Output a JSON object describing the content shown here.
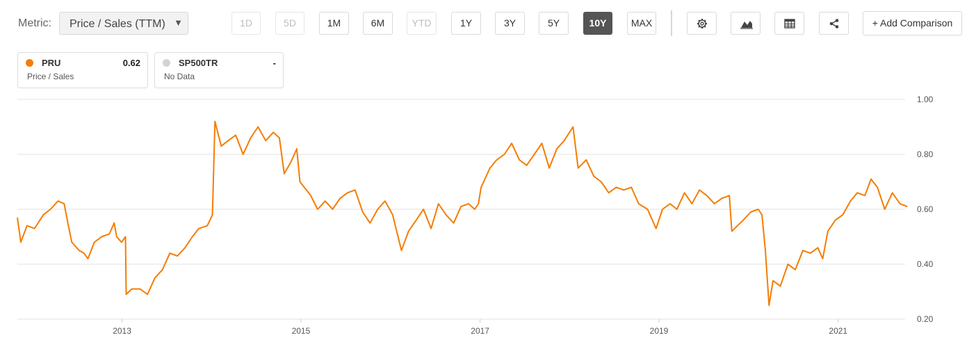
{
  "toolbar": {
    "metric_label": "Metric:",
    "metric_value": "Price / Sales (TTM)",
    "ranges": [
      {
        "label": "1D",
        "state": "disabled"
      },
      {
        "label": "5D",
        "state": "disabled"
      },
      {
        "label": "1M",
        "state": "enabled"
      },
      {
        "label": "6M",
        "state": "enabled"
      },
      {
        "label": "YTD",
        "state": "disabled"
      },
      {
        "label": "1Y",
        "state": "enabled"
      },
      {
        "label": "3Y",
        "state": "enabled"
      },
      {
        "label": "5Y",
        "state": "enabled"
      },
      {
        "label": "10Y",
        "state": "active"
      },
      {
        "label": "MAX",
        "state": "enabled"
      }
    ],
    "icons": [
      "gear-icon",
      "area-chart-icon",
      "table-icon",
      "share-icon"
    ],
    "add_comparison_label": "+ Add Comparison"
  },
  "legend": [
    {
      "symbol": "PRU",
      "value": "0.62",
      "subtitle": "Price / Sales",
      "color": "#f57c00"
    },
    {
      "symbol": "SP500TR",
      "value": "-",
      "subtitle": "No Data",
      "color": "#d3d3d3"
    }
  ],
  "chart_data": {
    "type": "line",
    "x_ticks": [
      "2013",
      "2015",
      "2017",
      "2019",
      "2021"
    ],
    "y_ticks": [
      "1.00",
      "0.80",
      "0.60",
      "0.40",
      "0.20"
    ],
    "ylim": [
      0.2,
      1.0
    ],
    "xlim": [
      "2011-11",
      "2021-10"
    ],
    "grid": "horizontal",
    "series": [
      {
        "name": "PRU",
        "color": "#f57c00",
        "points": [
          [
            "2011-11-01",
            0.57
          ],
          [
            "2011-11-15",
            0.48
          ],
          [
            "2011-12-10",
            0.54
          ],
          [
            "2012-01-10",
            0.53
          ],
          [
            "2012-02-15",
            0.58
          ],
          [
            "2012-03-15",
            0.6
          ],
          [
            "2012-04-15",
            0.63
          ],
          [
            "2012-05-10",
            0.62
          ],
          [
            "2012-05-25",
            0.55
          ],
          [
            "2012-06-10",
            0.48
          ],
          [
            "2012-07-10",
            0.45
          ],
          [
            "2012-07-30",
            0.44
          ],
          [
            "2012-08-15",
            0.42
          ],
          [
            "2012-09-10",
            0.48
          ],
          [
            "2012-10-10",
            0.5
          ],
          [
            "2012-11-10",
            0.51
          ],
          [
            "2012-11-30",
            0.55
          ],
          [
            "2012-12-10",
            0.5
          ],
          [
            "2012-12-30",
            0.48
          ],
          [
            "2013-01-15",
            0.5
          ],
          [
            "2013-01-18",
            0.29
          ],
          [
            "2013-02-10",
            0.31
          ],
          [
            "2013-03-15",
            0.31
          ],
          [
            "2013-04-15",
            0.29
          ],
          [
            "2013-05-15",
            0.35
          ],
          [
            "2013-06-15",
            0.38
          ],
          [
            "2013-07-15",
            0.44
          ],
          [
            "2013-08-15",
            0.43
          ],
          [
            "2013-09-15",
            0.46
          ],
          [
            "2013-10-15",
            0.5
          ],
          [
            "2013-11-10",
            0.53
          ],
          [
            "2013-12-15",
            0.54
          ],
          [
            "2014-01-05",
            0.58
          ],
          [
            "2014-01-15",
            0.92
          ],
          [
            "2014-02-10",
            0.83
          ],
          [
            "2014-03-10",
            0.85
          ],
          [
            "2014-04-10",
            0.87
          ],
          [
            "2014-05-10",
            0.8
          ],
          [
            "2014-06-10",
            0.86
          ],
          [
            "2014-07-10",
            0.9
          ],
          [
            "2014-08-10",
            0.85
          ],
          [
            "2014-09-10",
            0.88
          ],
          [
            "2014-10-05",
            0.86
          ],
          [
            "2014-10-25",
            0.73
          ],
          [
            "2014-11-20",
            0.77
          ],
          [
            "2014-12-15",
            0.82
          ],
          [
            "2014-12-28",
            0.7
          ],
          [
            "2015-02-10",
            0.65
          ],
          [
            "2015-03-10",
            0.6
          ],
          [
            "2015-04-10",
            0.63
          ],
          [
            "2015-05-10",
            0.6
          ],
          [
            "2015-06-10",
            0.64
          ],
          [
            "2015-07-10",
            0.66
          ],
          [
            "2015-08-10",
            0.67
          ],
          [
            "2015-09-10",
            0.59
          ],
          [
            "2015-10-10",
            0.55
          ],
          [
            "2015-11-10",
            0.6
          ],
          [
            "2015-12-10",
            0.63
          ],
          [
            "2016-01-10",
            0.58
          ],
          [
            "2016-02-15",
            0.45
          ],
          [
            "2016-03-15",
            0.52
          ],
          [
            "2016-04-15",
            0.56
          ],
          [
            "2016-05-15",
            0.6
          ],
          [
            "2016-06-15",
            0.53
          ],
          [
            "2016-07-15",
            0.62
          ],
          [
            "2016-08-15",
            0.58
          ],
          [
            "2016-09-15",
            0.55
          ],
          [
            "2016-10-15",
            0.61
          ],
          [
            "2016-11-15",
            0.62
          ],
          [
            "2016-12-10",
            0.6
          ],
          [
            "2016-12-25",
            0.62
          ],
          [
            "2017-01-05",
            0.68
          ],
          [
            "2017-02-10",
            0.75
          ],
          [
            "2017-03-10",
            0.78
          ],
          [
            "2017-04-10",
            0.8
          ],
          [
            "2017-05-10",
            0.84
          ],
          [
            "2017-06-10",
            0.78
          ],
          [
            "2017-07-10",
            0.76
          ],
          [
            "2017-08-10",
            0.8
          ],
          [
            "2017-09-10",
            0.84
          ],
          [
            "2017-10-10",
            0.75
          ],
          [
            "2017-11-10",
            0.82
          ],
          [
            "2017-12-10",
            0.85
          ],
          [
            "2018-01-15",
            0.9
          ],
          [
            "2018-02-05",
            0.75
          ],
          [
            "2018-03-10",
            0.78
          ],
          [
            "2018-04-10",
            0.72
          ],
          [
            "2018-05-10",
            0.7
          ],
          [
            "2018-06-10",
            0.66
          ],
          [
            "2018-07-10",
            0.68
          ],
          [
            "2018-08-10",
            0.67
          ],
          [
            "2018-09-10",
            0.68
          ],
          [
            "2018-10-10",
            0.62
          ],
          [
            "2018-11-15",
            0.6
          ],
          [
            "2018-12-20",
            0.53
          ],
          [
            "2019-01-15",
            0.6
          ],
          [
            "2019-02-15",
            0.62
          ],
          [
            "2019-03-15",
            0.6
          ],
          [
            "2019-04-15",
            0.66
          ],
          [
            "2019-05-15",
            0.62
          ],
          [
            "2019-06-15",
            0.67
          ],
          [
            "2019-07-15",
            0.65
          ],
          [
            "2019-08-15",
            0.62
          ],
          [
            "2019-09-15",
            0.64
          ],
          [
            "2019-10-15",
            0.65
          ],
          [
            "2019-10-25",
            0.52
          ],
          [
            "2019-12-10",
            0.56
          ],
          [
            "2020-01-10",
            0.59
          ],
          [
            "2020-02-10",
            0.6
          ],
          [
            "2020-02-25",
            0.58
          ],
          [
            "2020-03-10",
            0.45
          ],
          [
            "2020-03-25",
            0.25
          ],
          [
            "2020-04-10",
            0.34
          ],
          [
            "2020-05-10",
            0.32
          ],
          [
            "2020-06-10",
            0.4
          ],
          [
            "2020-07-10",
            0.38
          ],
          [
            "2020-08-10",
            0.45
          ],
          [
            "2020-09-10",
            0.44
          ],
          [
            "2020-10-10",
            0.46
          ],
          [
            "2020-10-30",
            0.42
          ],
          [
            "2020-11-20",
            0.52
          ],
          [
            "2020-12-20",
            0.56
          ],
          [
            "2021-01-20",
            0.58
          ],
          [
            "2021-02-20",
            0.63
          ],
          [
            "2021-03-20",
            0.66
          ],
          [
            "2021-04-20",
            0.65
          ],
          [
            "2021-05-15",
            0.71
          ],
          [
            "2021-06-10",
            0.68
          ],
          [
            "2021-07-10",
            0.6
          ],
          [
            "2021-08-10",
            0.66
          ],
          [
            "2021-09-10",
            0.62
          ],
          [
            "2021-10-10",
            0.61
          ]
        ]
      }
    ]
  }
}
